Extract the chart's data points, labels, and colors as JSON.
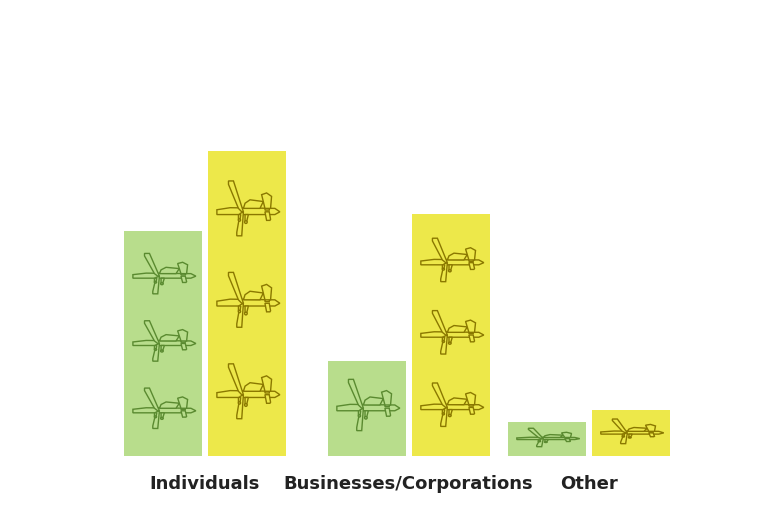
{
  "categories": [
    "Individuals",
    "Businesses/Corporations",
    "Other"
  ],
  "rural_values": [
    1250,
    529,
    190
  ],
  "urban_values": [
    1698,
    1344,
    254
  ],
  "rural_color": "#b8dd8c",
  "urban_color": "#ede84a",
  "background_color": "#ffffff",
  "max_value": 1800,
  "label_fontsize": 14,
  "category_fontsize": 13,
  "figsize": [
    7.74,
    5.12
  ],
  "dpi": 100,
  "rural_plane_fill": "#b8dd8c",
  "rural_plane_edge": "#5a8a30",
  "urban_plane_fill": "#ede84a",
  "urban_plane_edge": "#8a7800",
  "plane_counts_rural": [
    3,
    1,
    1
  ],
  "plane_counts_urban": [
    3,
    3,
    1
  ]
}
